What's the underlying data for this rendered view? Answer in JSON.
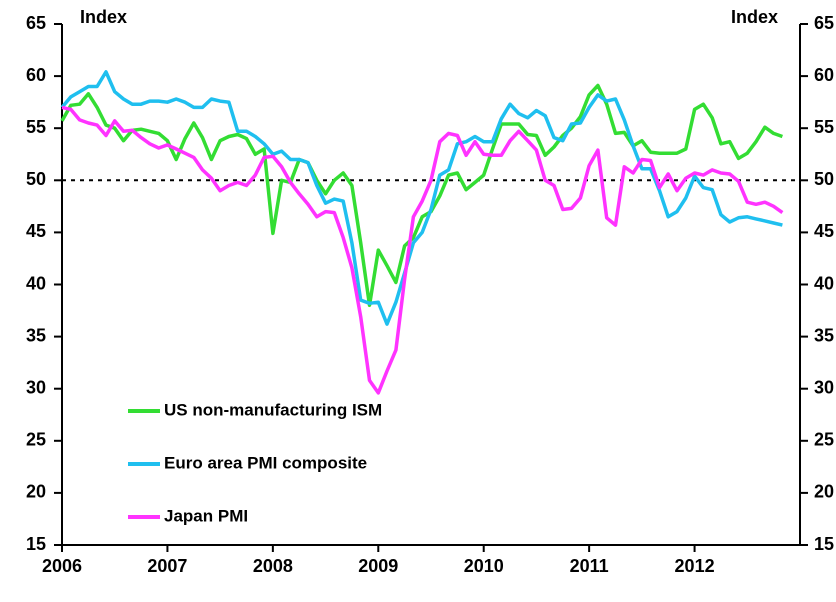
{
  "chart_data": {
    "type": "line",
    "ylabel": "Index",
    "y2label": "Index",
    "xlim": [
      2006,
      2013
    ],
    "xticks": [
      2006,
      2007,
      2008,
      2009,
      2010,
      2011,
      2012
    ],
    "ylim": [
      15,
      65
    ],
    "yticks": [
      15,
      20,
      25,
      30,
      35,
      40,
      45,
      50,
      55,
      60,
      65
    ],
    "y2lim": [
      15,
      65
    ],
    "y2ticks": [
      15,
      20,
      25,
      30,
      35,
      40,
      45,
      50,
      55,
      60,
      65
    ],
    "reference_line": 50,
    "x": [
      2006.0,
      2006.083,
      2006.167,
      2006.25,
      2006.333,
      2006.417,
      2006.5,
      2006.583,
      2006.667,
      2006.75,
      2006.833,
      2006.917,
      2007.0,
      2007.083,
      2007.167,
      2007.25,
      2007.333,
      2007.417,
      2007.5,
      2007.583,
      2007.667,
      2007.75,
      2007.833,
      2007.917,
      2008.0,
      2008.083,
      2008.167,
      2008.25,
      2008.333,
      2008.417,
      2008.5,
      2008.583,
      2008.667,
      2008.75,
      2008.833,
      2008.917,
      2009.0,
      2009.083,
      2009.167,
      2009.25,
      2009.333,
      2009.417,
      2009.5,
      2009.583,
      2009.667,
      2009.75,
      2009.833,
      2009.917,
      2010.0,
      2010.083,
      2010.167,
      2010.25,
      2010.333,
      2010.417,
      2010.5,
      2010.583,
      2010.667,
      2010.75,
      2010.833,
      2010.917,
      2011.0,
      2011.083,
      2011.167,
      2011.25,
      2011.333,
      2011.417,
      2011.5,
      2011.583,
      2011.667,
      2011.75,
      2011.833,
      2011.917,
      2012.0,
      2012.083,
      2012.167,
      2012.25,
      2012.333,
      2012.417,
      2012.5,
      2012.583,
      2012.667,
      2012.75,
      2012.833
    ],
    "series": [
      {
        "name": "US non-manufacturing ISM",
        "color": "#33dd33",
        "values": [
          55.7,
          57.2,
          57.3,
          58.3,
          57,
          55.3,
          55,
          53.8,
          54.8,
          54.9,
          54.7,
          54.5,
          53.8,
          52,
          54,
          55.5,
          54.1,
          52,
          53.8,
          54.2,
          54.4,
          54,
          52.5,
          53,
          44.9,
          50,
          49.8,
          52,
          51.7,
          50,
          48.7,
          50,
          50.7,
          49.5,
          44,
          38,
          43.3,
          41.8,
          40.2,
          43.7,
          44.5,
          46.5,
          47,
          48.5,
          50.5,
          50.7,
          49.1,
          49.8,
          50.5,
          53,
          55.4,
          55.4,
          55.4,
          54.4,
          54.3,
          52.4,
          53.2,
          54.3,
          55,
          56.1,
          58.2,
          59.1,
          57.3,
          54.5,
          54.6,
          53.3,
          53.8,
          52.7,
          52.6,
          52.6,
          52.6,
          53,
          56.8,
          57.3,
          56,
          53.5,
          53.7,
          52.1,
          52.6,
          53.7,
          55.1,
          54.5,
          54.2
        ]
      },
      {
        "name": "Euro area PMI composite",
        "color": "#1fbfef",
        "values": [
          57,
          58,
          58.5,
          59,
          59,
          60.4,
          58.5,
          57.8,
          57.3,
          57.3,
          57.6,
          57.6,
          57.5,
          57.8,
          57.5,
          57,
          57,
          57.8,
          57.6,
          57.5,
          54.7,
          54.7,
          54.2,
          53.5,
          52.5,
          52.8,
          52,
          52,
          51.7,
          49.5,
          47.8,
          48.2,
          48,
          44,
          38.5,
          38.2,
          38.3,
          36.2,
          38.3,
          41.1,
          44,
          45,
          47.2,
          50.5,
          51,
          53.5,
          53.7,
          54.2,
          53.7,
          53.7,
          55.9,
          57.3,
          56.4,
          56,
          56.7,
          56.2,
          54.1,
          53.8,
          55.4,
          55.5,
          57,
          58.2,
          57.6,
          57.8,
          55.8,
          53.3,
          51.1,
          51.1,
          49,
          46.5,
          47,
          48.3,
          50.4,
          49.3,
          49.1,
          46.7,
          46,
          46.4,
          46.5,
          46.3,
          46.1,
          45.9,
          45.7
        ]
      },
      {
        "name": "Japan PMI",
        "color": "#ff33ff",
        "values": [
          57,
          56.8,
          55.8,
          55.5,
          55.3,
          54.3,
          55.7,
          54.7,
          54.8,
          54.1,
          53.5,
          53.1,
          53.4,
          53,
          52.6,
          52.2,
          51,
          50.2,
          49,
          49.5,
          49.8,
          49.5,
          50.5,
          52.2,
          52.3,
          51.3,
          49.8,
          48.7,
          47.7,
          46.5,
          47,
          46.9,
          44.5,
          41.6,
          36.9,
          30.8,
          29.6,
          31.7,
          33.7,
          40.5,
          46.5,
          48,
          50,
          53.7,
          54.5,
          54.3,
          52.4,
          53.7,
          52.5,
          52.4,
          52.4,
          53.8,
          54.7,
          53.8,
          52.9,
          50,
          49.5,
          47.2,
          47.3,
          48.3,
          51.4,
          52.9,
          46.4,
          45.7,
          51.3,
          50.7,
          52,
          51.9,
          49.3,
          50.6,
          49,
          50.2,
          50.7,
          50.5,
          51,
          50.7,
          50.6,
          49.9,
          47.9,
          47.7,
          47.9,
          47.5,
          46.9
        ]
      }
    ]
  }
}
